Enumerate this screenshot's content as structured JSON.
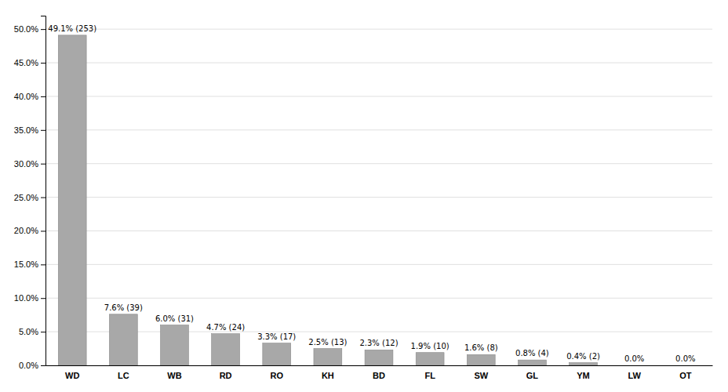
{
  "chart_data": {
    "type": "bar",
    "categories": [
      "WD",
      "LC",
      "WB",
      "RD",
      "RO",
      "KH",
      "BD",
      "FL",
      "SW",
      "GL",
      "YM",
      "LW",
      "OT"
    ],
    "values": [
      49.1,
      7.6,
      6.0,
      4.7,
      3.3,
      2.5,
      2.3,
      1.9,
      1.6,
      0.8,
      0.4,
      0.0,
      0.0
    ],
    "value_labels": [
      "49.1% (253)",
      "7.6% (39)",
      "6.0% (31)",
      "4.7% (24)",
      "3.3% (17)",
      "2.5% (13)",
      "2.3% (12)",
      "1.9% (10)",
      "1.6% (8)",
      "0.8% (4)",
      "0.4% (2)",
      "0.0%",
      "0.0%"
    ],
    "data_labels": true,
    "color": "#a8a8a8",
    "ylim": [
      0,
      52
    ],
    "yticks": [
      {
        "value": 0.0,
        "label": "0.0%"
      },
      {
        "value": 5.0,
        "label": "5.0%"
      },
      {
        "value": 10.0,
        "label": "10.0%"
      },
      {
        "value": 15.0,
        "label": "15.0%"
      },
      {
        "value": 20.0,
        "label": "20.0%"
      },
      {
        "value": 25.0,
        "label": "25.0%"
      },
      {
        "value": 30.0,
        "label": "30.0%"
      },
      {
        "value": 35.0,
        "label": "35.0%"
      },
      {
        "value": 40.0,
        "label": "40.0%"
      },
      {
        "value": 45.0,
        "label": "45.0%"
      },
      {
        "value": 50.0,
        "label": "50.0%"
      }
    ],
    "grid": true
  }
}
